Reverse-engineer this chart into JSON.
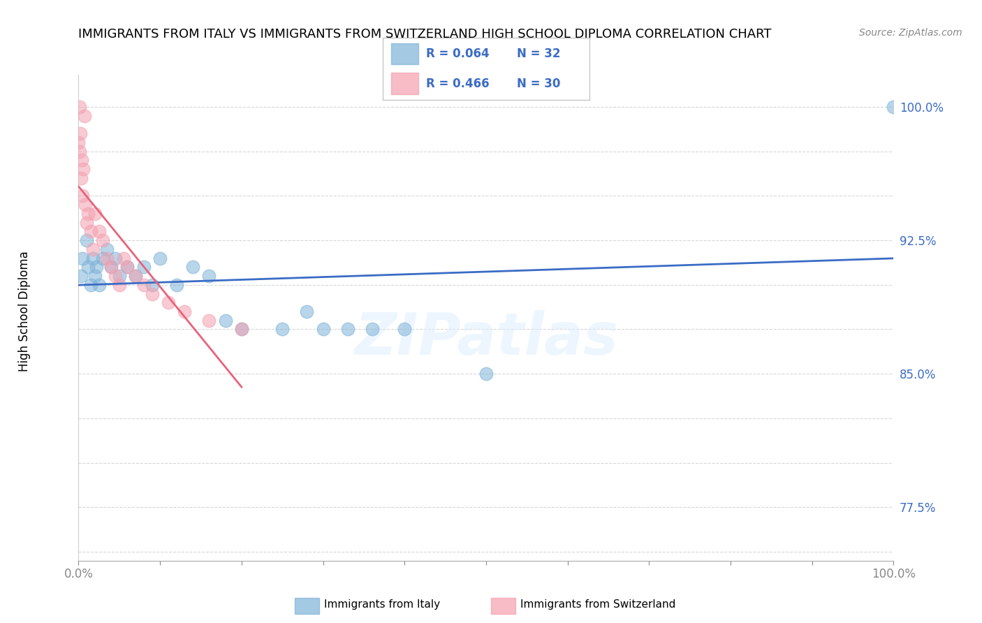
{
  "title": "IMMIGRANTS FROM ITALY VS IMMIGRANTS FROM SWITZERLAND HIGH SCHOOL DIPLOMA CORRELATION CHART",
  "source": "Source: ZipAtlas.com",
  "ylabel": "High School Diploma",
  "y_tick_positions": [
    75.0,
    77.5,
    80.0,
    82.5,
    85.0,
    87.5,
    90.0,
    92.5,
    95.0,
    97.5,
    100.0
  ],
  "y_tick_labels": [
    "",
    "77.5%",
    "",
    "",
    "85.0%",
    "",
    "",
    "92.5%",
    "",
    "",
    "100.0%"
  ],
  "legend_italy_r": "R = 0.064",
  "legend_italy_n": "N = 32",
  "legend_swiss_r": "R = 0.466",
  "legend_swiss_n": "N = 30",
  "bottom_legend_italy": "Immigrants from Italy",
  "bottom_legend_swiss": "Immigrants from Switzerland",
  "italy_color": "#7EB3D8",
  "swiss_color": "#F4A0AF",
  "italy_line_color": "#3B6CC5",
  "swiss_line_color": "#E8637A",
  "watermark_text": "ZIPatlas",
  "italy_x": [
    0.3,
    0.5,
    1.0,
    1.2,
    1.5,
    1.8,
    2.0,
    2.2,
    2.5,
    3.0,
    3.5,
    4.0,
    4.5,
    5.0,
    6.0,
    7.0,
    8.0,
    9.0,
    10.0,
    12.0,
    14.0,
    16.0,
    18.0,
    20.0,
    25.0,
    28.0,
    30.0,
    33.0,
    36.0,
    40.0,
    50.0,
    100.0
  ],
  "italy_y": [
    90.5,
    91.5,
    92.5,
    91.0,
    90.0,
    91.5,
    90.5,
    91.0,
    90.0,
    91.5,
    92.0,
    91.0,
    91.5,
    90.5,
    91.0,
    90.5,
    91.0,
    90.0,
    91.5,
    90.0,
    91.0,
    90.5,
    88.0,
    87.5,
    87.5,
    88.5,
    87.5,
    87.5,
    87.5,
    87.5,
    85.0,
    100.0
  ],
  "swiss_x": [
    0.0,
    0.1,
    0.15,
    0.2,
    0.3,
    0.4,
    0.5,
    0.6,
    0.7,
    0.8,
    1.0,
    1.2,
    1.5,
    1.8,
    2.0,
    2.5,
    3.0,
    3.5,
    4.0,
    4.5,
    5.0,
    5.5,
    6.0,
    7.0,
    8.0,
    9.0,
    11.0,
    13.0,
    16.0,
    20.0
  ],
  "swiss_y": [
    98.0,
    97.5,
    100.0,
    98.5,
    96.0,
    97.0,
    95.0,
    96.5,
    99.5,
    94.5,
    93.5,
    94.0,
    93.0,
    92.0,
    94.0,
    93.0,
    92.5,
    91.5,
    91.0,
    90.5,
    90.0,
    91.5,
    91.0,
    90.5,
    90.0,
    89.5,
    89.0,
    88.5,
    88.0,
    87.5
  ]
}
